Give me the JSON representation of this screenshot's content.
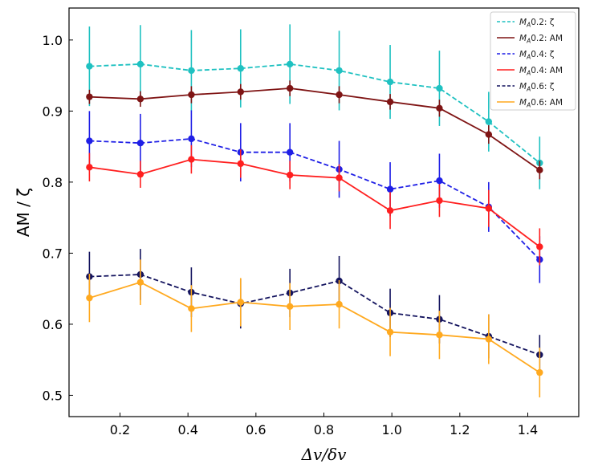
{
  "chart_data": {
    "type": "line",
    "xlabel": "Δv/δv",
    "ylabel": "AM / ζ",
    "xlim": [
      0.05,
      1.55
    ],
    "ylim": [
      0.47,
      1.045
    ],
    "xticks": [
      0.2,
      0.4,
      0.6,
      0.8,
      1.0,
      1.2,
      1.4
    ],
    "xtick_labels": [
      "0.2",
      "0.4",
      "0.6",
      "0.8",
      "1.0",
      "1.2",
      "1.4"
    ],
    "yticks": [
      0.5,
      0.6,
      0.7,
      0.8,
      0.9,
      1.0
    ],
    "ytick_labels": [
      "0.5",
      "0.6",
      "0.7",
      "0.8",
      "0.9",
      "1.0"
    ],
    "legend_position": "top-right",
    "x": [
      0.11,
      0.26,
      0.41,
      0.555,
      0.7,
      0.845,
      0.995,
      1.14,
      1.285,
      1.435
    ],
    "series": [
      {
        "name": "M_A0.2: ζ",
        "label_sub": "A",
        "label_pre": "M",
        "label_post": "0.2: ζ",
        "color": "#1fc1c1",
        "dash": true,
        "values": [
          0.963,
          0.966,
          0.957,
          0.96,
          0.966,
          0.957,
          0.941,
          0.932,
          0.885,
          0.827
        ],
        "errors": [
          0.056,
          0.055,
          0.057,
          0.055,
          0.056,
          0.056,
          0.052,
          0.053,
          0.042,
          0.037
        ]
      },
      {
        "name": "M_A0.2: AM",
        "label_sub": "A",
        "label_pre": "M",
        "label_post": "0.2: AM",
        "color": "#7f1414",
        "dash": false,
        "values": [
          0.92,
          0.917,
          0.923,
          0.927,
          0.932,
          0.923,
          0.913,
          0.904,
          0.867,
          0.817
        ],
        "errors": [
          0.01,
          0.011,
          0.012,
          0.011,
          0.011,
          0.012,
          0.011,
          0.012,
          0.013,
          0.013
        ]
      },
      {
        "name": "M_A0.4: ζ",
        "label_sub": "A",
        "label_pre": "M",
        "label_post": "0.4: ζ",
        "color": "#1f1fe6",
        "dash": true,
        "values": [
          0.858,
          0.855,
          0.861,
          0.842,
          0.842,
          0.818,
          0.79,
          0.802,
          0.765,
          0.691
        ],
        "errors": [
          0.042,
          0.041,
          0.04,
          0.041,
          0.041,
          0.04,
          0.038,
          0.038,
          0.035,
          0.033
        ]
      },
      {
        "name": "M_A0.4: AM",
        "label_sub": "A",
        "label_pre": "M",
        "label_post": "0.4: AM",
        "color": "#ff1f1f",
        "dash": false,
        "values": [
          0.821,
          0.811,
          0.832,
          0.826,
          0.81,
          0.806,
          0.76,
          0.774,
          0.763,
          0.709
        ],
        "errors": [
          0.02,
          0.019,
          0.02,
          0.02,
          0.02,
          0.019,
          0.026,
          0.023,
          0.026,
          0.026
        ]
      },
      {
        "name": "M_A0.6: ζ",
        "label_sub": "A",
        "label_pre": "M",
        "label_post": "0.6: ζ",
        "color": "#13135e",
        "dash": true,
        "values": [
          0.667,
          0.67,
          0.645,
          0.629,
          0.644,
          0.661,
          0.616,
          0.607,
          0.583,
          0.557
        ],
        "errors": [
          0.035,
          0.036,
          0.035,
          0.035,
          0.034,
          0.035,
          0.034,
          0.034,
          0.031,
          0.028
        ]
      },
      {
        "name": "M_A0.6: AM",
        "label_sub": "A",
        "label_pre": "M",
        "label_post": "0.6: AM",
        "color": "#ffa91f",
        "dash": false,
        "values": [
          0.637,
          0.659,
          0.622,
          0.631,
          0.625,
          0.628,
          0.589,
          0.585,
          0.579,
          0.532
        ],
        "errors": [
          0.034,
          0.032,
          0.033,
          0.034,
          0.033,
          0.034,
          0.034,
          0.034,
          0.035,
          0.035
        ]
      }
    ]
  }
}
